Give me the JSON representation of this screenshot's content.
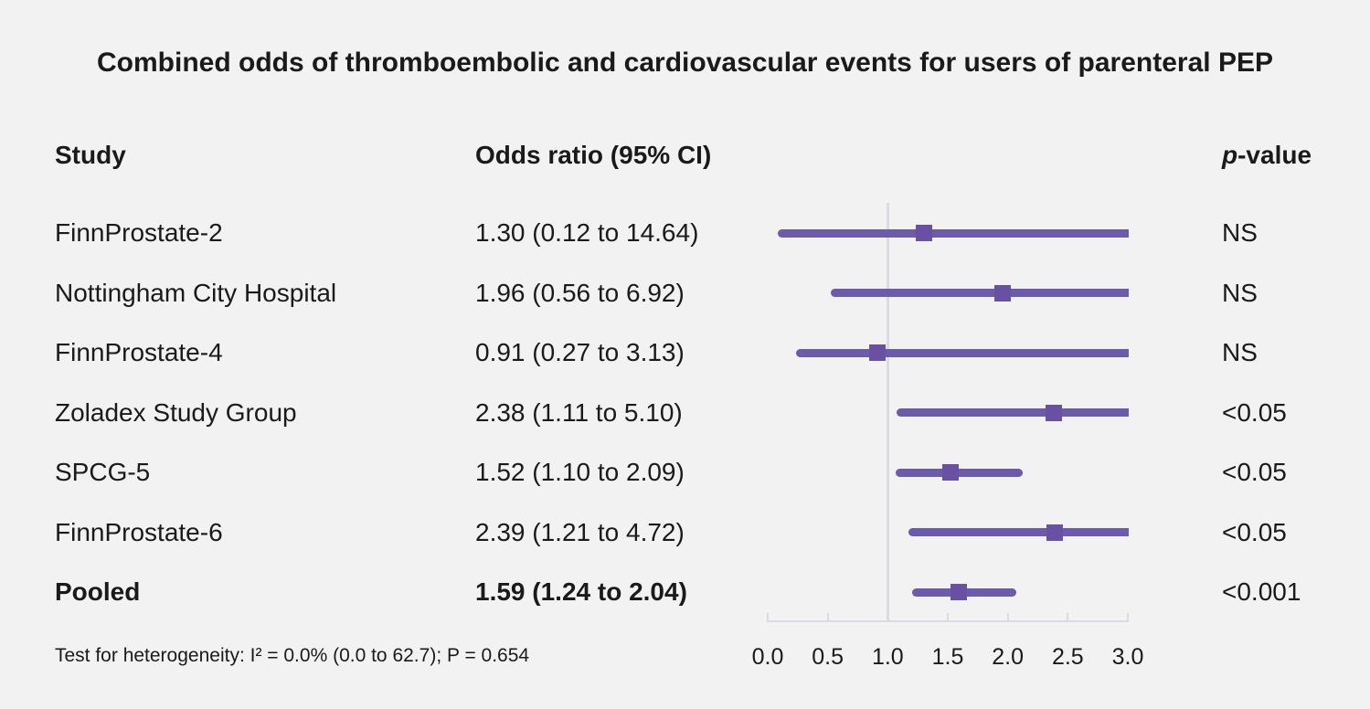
{
  "title": "Combined odds of thromboembolic and cardiovascular events for users of parenteral PEP",
  "header": {
    "study": "Study",
    "odds_ratio": "Odds ratio (95% CI)",
    "p_italic": "p",
    "p_rest": "-value"
  },
  "rows": [
    {
      "study": "FinnProstate-2",
      "or_ci": "1.30 (0.12 to 14.64)",
      "p": "NS"
    },
    {
      "study": "Nottingham City Hospital",
      "or_ci": "1.96 (0.56 to 6.92)",
      "p": "NS"
    },
    {
      "study": "FinnProstate-4",
      "or_ci": "0.91 (0.27 to 3.13)",
      "p": "NS"
    },
    {
      "study": "Zoladex Study Group",
      "or_ci": "2.38 (1.11 to 5.10)",
      "p": "<0.05"
    },
    {
      "study": "SPCG-5",
      "or_ci": "1.52 (1.10 to 2.09)",
      "p": "<0.05"
    },
    {
      "study": "FinnProstate-6",
      "or_ci": "2.39 (1.21 to 4.72)",
      "p": "<0.05"
    },
    {
      "study": "Pooled",
      "or_ci": "1.59 (1.24 to 2.04)",
      "p": "<0.001"
    }
  ],
  "footer": "Test for heterogeneity: I² = 0.0% (0.0 to 62.7); P = 0.654",
  "chart_data": {
    "type": "scatter",
    "subtype": "forest-plot",
    "title": "Combined odds of thromboembolic and cardiovascular events for users of parenteral PEP",
    "studies": [
      {
        "name": "FinnProstate-2",
        "estimate": 1.3,
        "ci_low": 0.12,
        "ci_high": 14.64,
        "p": "NS"
      },
      {
        "name": "Nottingham City Hospital",
        "estimate": 1.96,
        "ci_low": 0.56,
        "ci_high": 6.92,
        "p": "NS"
      },
      {
        "name": "FinnProstate-4",
        "estimate": 0.91,
        "ci_low": 0.27,
        "ci_high": 3.13,
        "p": "NS"
      },
      {
        "name": "Zoladex Study Group",
        "estimate": 2.38,
        "ci_low": 1.11,
        "ci_high": 5.1,
        "p": "<0.05"
      },
      {
        "name": "SPCG-5",
        "estimate": 1.52,
        "ci_low": 1.1,
        "ci_high": 2.09,
        "p": "<0.05"
      },
      {
        "name": "FinnProstate-6",
        "estimate": 2.39,
        "ci_low": 1.21,
        "ci_high": 4.72,
        "p": "<0.05"
      },
      {
        "name": "Pooled",
        "estimate": 1.59,
        "ci_low": 1.24,
        "ci_high": 2.04,
        "p": "<0.001",
        "pooled": true
      }
    ],
    "x_axis": {
      "range": [
        0.0,
        3.0
      ],
      "tick_labels": [
        "0.0",
        "0.5",
        "1.0",
        "1.5",
        "2.0",
        "2.5",
        "3.0"
      ],
      "reference_line": 1.0
    },
    "heterogeneity": "Test for heterogeneity: I² = 0.0% (0.0 to 62.7); P = 0.654",
    "legend_position": "none",
    "grid": false
  },
  "colors": {
    "background": "#f2f2f2",
    "ci_line": "#6c5aab",
    "marker": "#6950a3",
    "reference_line": "#d8dce2",
    "axis": "#d8dce2",
    "text": "#1a1a1a"
  }
}
